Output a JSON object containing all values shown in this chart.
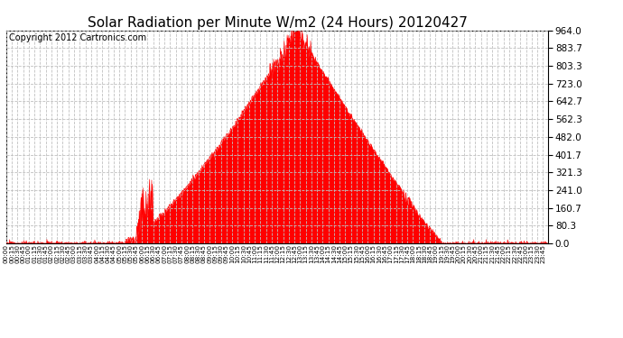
{
  "title": "Solar Radiation per Minute W/m2 (24 Hours) 20120427",
  "copyright": "Copyright 2012 Cartronics.com",
  "y_ticks": [
    0.0,
    80.3,
    160.7,
    241.0,
    321.3,
    401.7,
    482.0,
    562.3,
    642.7,
    723.0,
    803.3,
    883.7,
    964.0
  ],
  "y_min": 0.0,
  "y_max": 964.0,
  "fill_color": "#FF0000",
  "line_color": "#FF0000",
  "dashed_line_color": "#FF0000",
  "grid_color": "#C0C0C0",
  "background_color": "#FFFFFF",
  "title_fontsize": 11,
  "copyright_fontsize": 7
}
